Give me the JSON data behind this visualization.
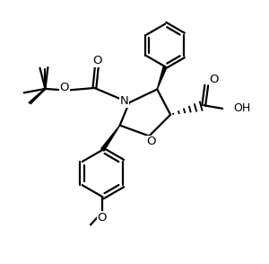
{
  "bg_color": "#ffffff",
  "line_color": "#000000",
  "line_width": 1.6,
  "figsize": [
    3.0,
    2.94
  ],
  "dpi": 100,
  "xlim": [
    0,
    10
  ],
  "ylim": [
    0,
    9.8
  ]
}
